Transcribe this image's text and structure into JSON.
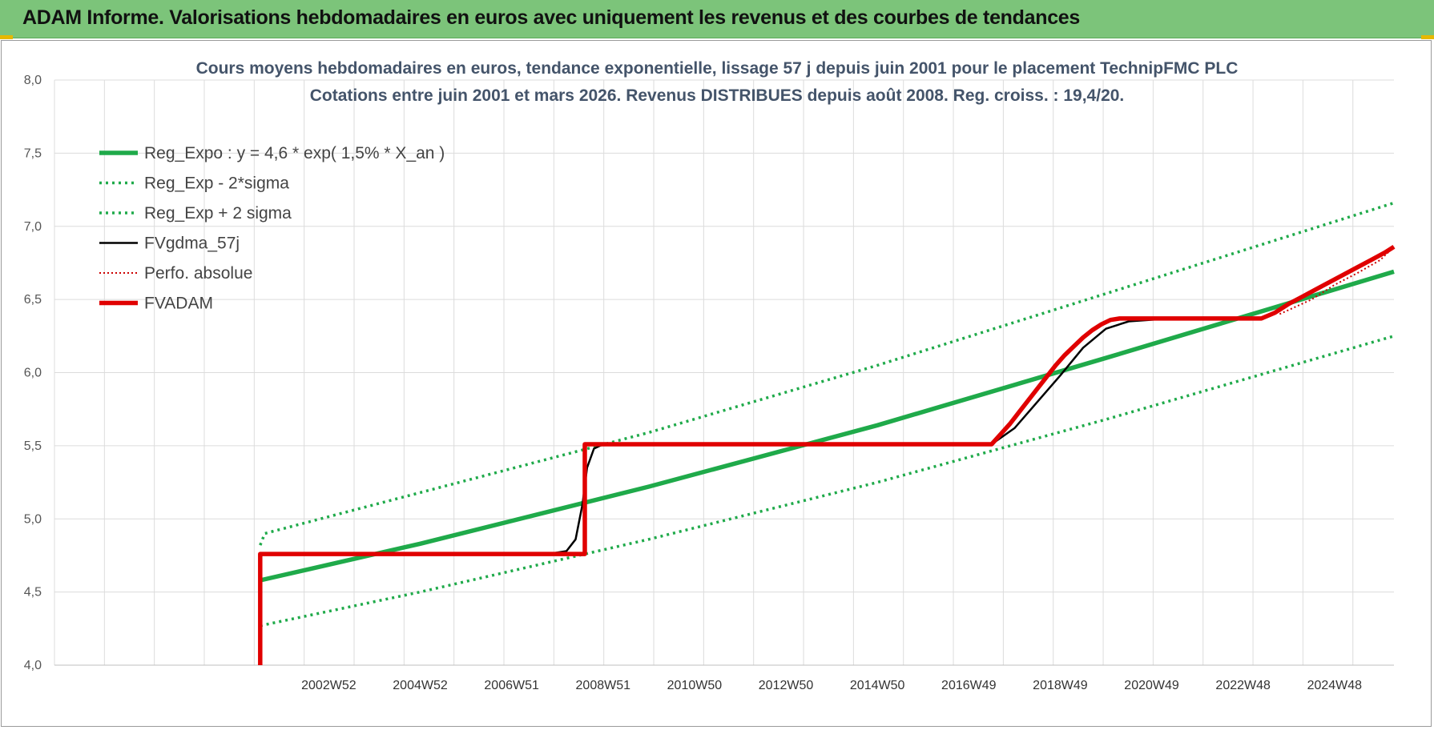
{
  "header": {
    "title": "ADAM Informe. Valorisations hebdomadaires en euros avec uniquement les revenus et des courbes de tendances"
  },
  "colors": {
    "header_bg": "#7cc47a",
    "reg": "#1faa4a",
    "fvgdma": "#000000",
    "perfo": "#cc0000",
    "fvadam": "#e00000"
  },
  "chart_data": {
    "type": "line",
    "title": "Cours moyens hebdomadaires en euros, tendance exponentielle, lissage 57 j depuis juin 2001 pour le placement TechnipFMC PLC",
    "subtitle": "Cotations entre juin 2001 et mars 2026. Revenus DISTRIBUES depuis août 2008. Reg. croiss. : 19,4/20.",
    "xlabel": "",
    "ylabel": "",
    "ylim": [
      4.0,
      8.0
    ],
    "y_ticks": [
      "4,0",
      "4,5",
      "5,0",
      "5,5",
      "6,0",
      "6,5",
      "7,0",
      "7,5",
      "8,0"
    ],
    "xlim": [
      1997.0,
      2026.3
    ],
    "x_ticks": [
      {
        "label": "2002W52",
        "x": 2003.0
      },
      {
        "label": "2004W52",
        "x": 2005.0
      },
      {
        "label": "2006W51",
        "x": 2007.0
      },
      {
        "label": "2008W51",
        "x": 2009.0
      },
      {
        "label": "2010W50",
        "x": 2011.0
      },
      {
        "label": "2012W50",
        "x": 2013.0
      },
      {
        "label": "2014W50",
        "x": 2015.0
      },
      {
        "label": "2016W49",
        "x": 2017.0
      },
      {
        "label": "2018W49",
        "x": 2019.0
      },
      {
        "label": "2020W49",
        "x": 2021.0
      },
      {
        "label": "2022W48",
        "x": 2023.0
      },
      {
        "label": "2024W48",
        "x": 2025.0
      }
    ],
    "grid": true,
    "legend": "top-left",
    "series": [
      {
        "key": "reg",
        "name": "Reg_Expo : y = 4,6 * exp( 1,5% *  X_an )",
        "style": "solid-thick",
        "color": "#1faa4a",
        "x": [
          2001.5,
          2005,
          2010,
          2015,
          2020,
          2026.3
        ],
        "y": [
          4.58,
          4.83,
          5.22,
          5.64,
          6.1,
          6.69
        ]
      },
      {
        "key": "reg_minus",
        "name": "Reg_Exp - 2*sigma",
        "style": "dotted",
        "color": "#1faa4a",
        "x": [
          2001.5,
          2005,
          2010,
          2015,
          2020,
          2026.3
        ],
        "y": [
          4.27,
          4.5,
          4.86,
          5.25,
          5.68,
          6.25
        ]
      },
      {
        "key": "reg_plus",
        "name": "Reg_Exp + 2 sigma",
        "style": "dotted",
        "color": "#1faa4a",
        "x": [
          2001.5,
          2001.6,
          2005,
          2010,
          2015,
          2020,
          2026.3
        ],
        "y": [
          4.82,
          4.9,
          5.18,
          5.59,
          6.05,
          6.54,
          7.16
        ]
      },
      {
        "key": "fvgdma",
        "name": "FVgdma_57j",
        "style": "solid",
        "color": "#000000",
        "x": [
          2007.8,
          2008.2,
          2008.4,
          2008.55,
          2008.65,
          2008.8,
          2009.0,
          2017.5,
          2018.0,
          2018.5,
          2019.0,
          2019.5,
          2020.0,
          2020.5,
          2021.4
        ],
        "y": [
          4.76,
          4.78,
          4.86,
          5.1,
          5.35,
          5.48,
          5.51,
          5.51,
          5.62,
          5.8,
          5.98,
          6.17,
          6.3,
          6.35,
          6.37
        ]
      },
      {
        "key": "perfo",
        "name": "Perfo. absolue",
        "style": "dotted-thin",
        "color": "#cc0000",
        "x": [
          2023.8,
          2024.5,
          2025.0,
          2025.5,
          2026.0,
          2026.3
        ],
        "y": [
          6.4,
          6.5,
          6.6,
          6.68,
          6.77,
          6.86
        ]
      },
      {
        "key": "fvadam",
        "name": "FVADAM",
        "style": "solid-thick",
        "color": "#e00000",
        "x": [
          2001.5,
          2001.5,
          2008.6,
          2008.6,
          2017.5,
          2017.7,
          2017.9,
          2018.1,
          2018.3,
          2018.5,
          2018.7,
          2018.9,
          2019.1,
          2019.3,
          2019.5,
          2019.7,
          2019.9,
          2020.1,
          2020.3,
          2023.4,
          2023.7,
          2024.0,
          2024.3,
          2024.6,
          2024.9,
          2025.2,
          2025.5,
          2025.8,
          2026.1,
          2026.3
        ],
        "y": [
          4.0,
          4.76,
          4.76,
          5.51,
          5.51,
          5.58,
          5.65,
          5.73,
          5.81,
          5.89,
          5.97,
          6.05,
          6.12,
          6.18,
          6.24,
          6.29,
          6.33,
          6.36,
          6.37,
          6.37,
          6.41,
          6.47,
          6.52,
          6.57,
          6.62,
          6.67,
          6.72,
          6.77,
          6.82,
          6.86
        ]
      }
    ]
  }
}
